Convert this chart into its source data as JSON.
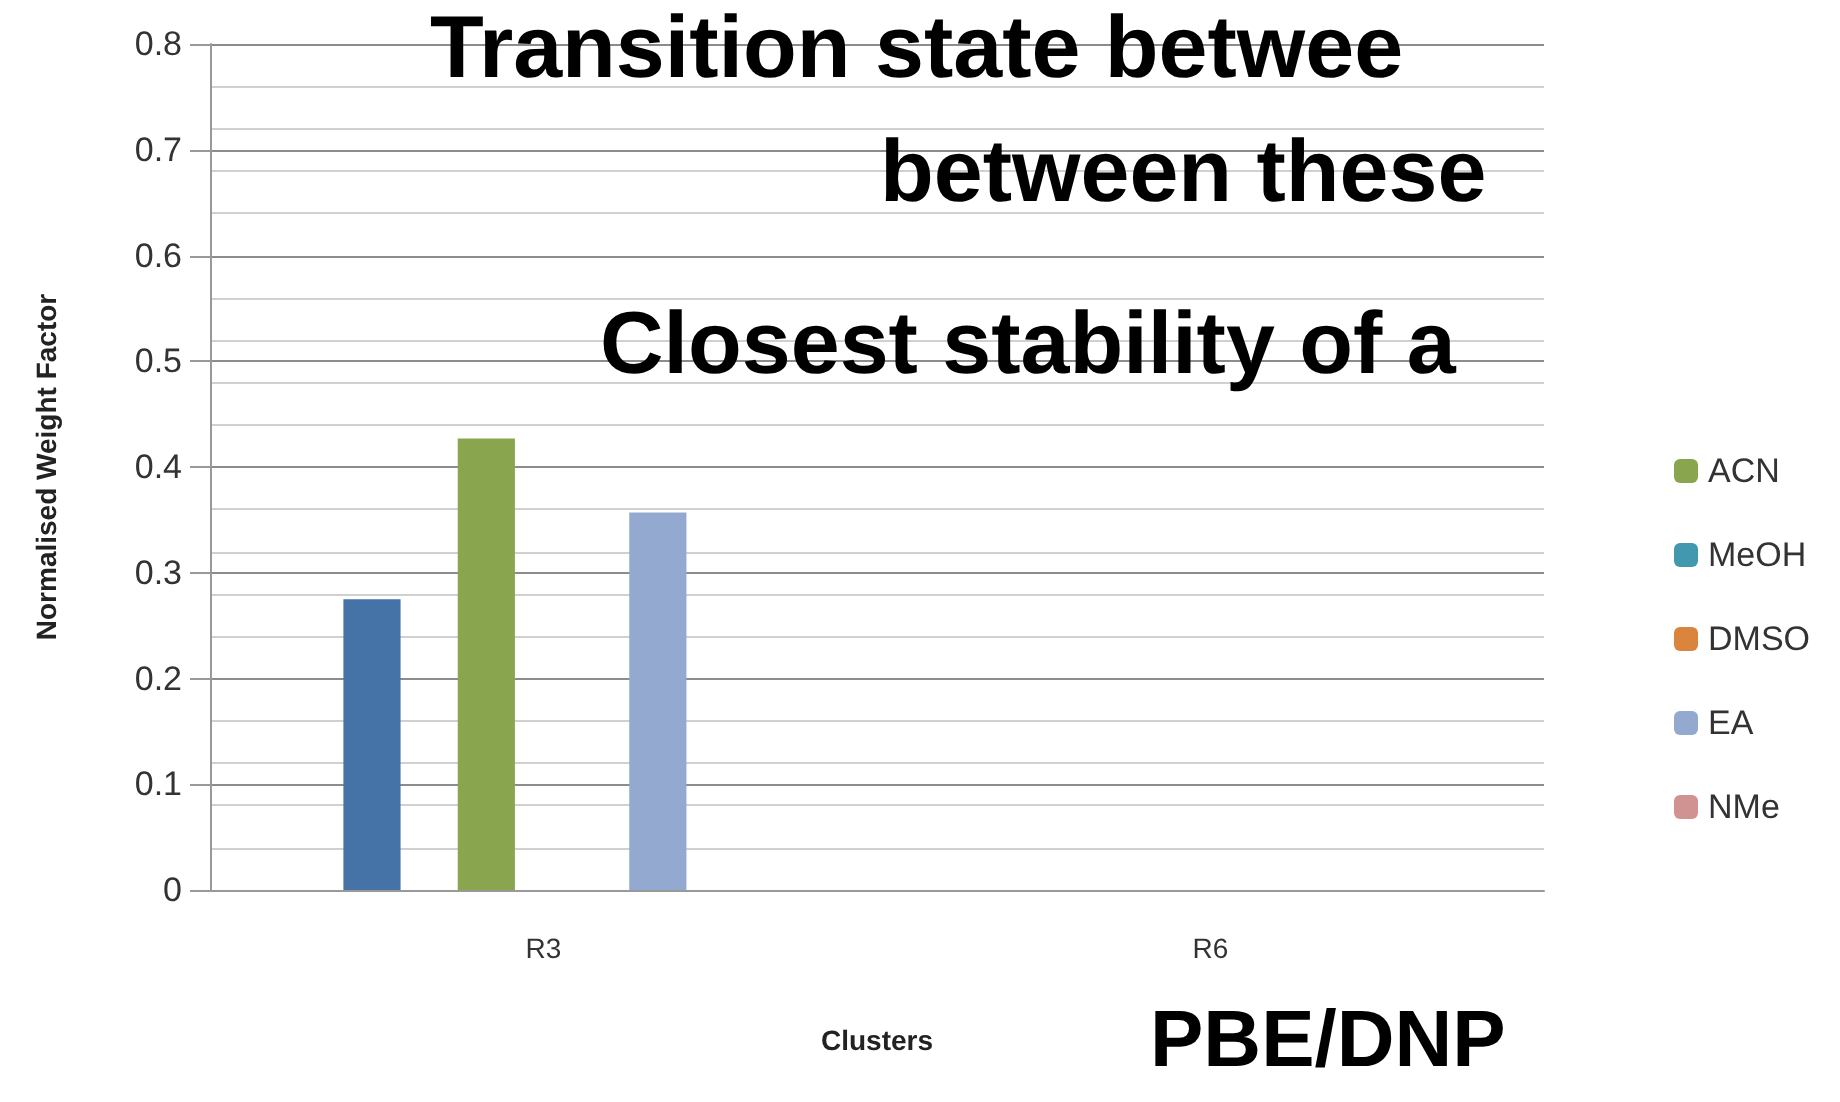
{
  "chart_data": {
    "type": "bar",
    "xlabel": "Clusters",
    "ylabel": "Normalised Weight Factor",
    "categories": [
      "R3",
      "R6"
    ],
    "series": [
      {
        "color": "#4572a7",
        "values": [
          0.275,
          null
        ]
      },
      {
        "color": "#aa4643",
        "values": [
          null,
          null
        ]
      },
      {
        "name": "ACN",
        "color": "#89a54e",
        "values": [
          0.427,
          null
        ]
      },
      {
        "name": "MeOH",
        "color": "#4198af",
        "values": [
          null,
          null
        ]
      },
      {
        "name": "DMSO",
        "color": "#db843d",
        "values": [
          null,
          null
        ]
      },
      {
        "name": "EA",
        "color": "#93a9cf",
        "values": [
          0.357,
          null
        ]
      },
      {
        "name": "NMe",
        "color": "#d19392",
        "values": [
          null,
          null
        ]
      }
    ],
    "ylim": [
      0,
      0.8
    ],
    "yticks": [
      0,
      0.1,
      0.2,
      0.3,
      0.4,
      0.5,
      0.6,
      0.7,
      0.8
    ],
    "grid": "y",
    "legend": "right",
    "annotations": [
      "Transition state betwee",
      "between these",
      "Closest stability of a",
      "PBE/DNP"
    ]
  }
}
